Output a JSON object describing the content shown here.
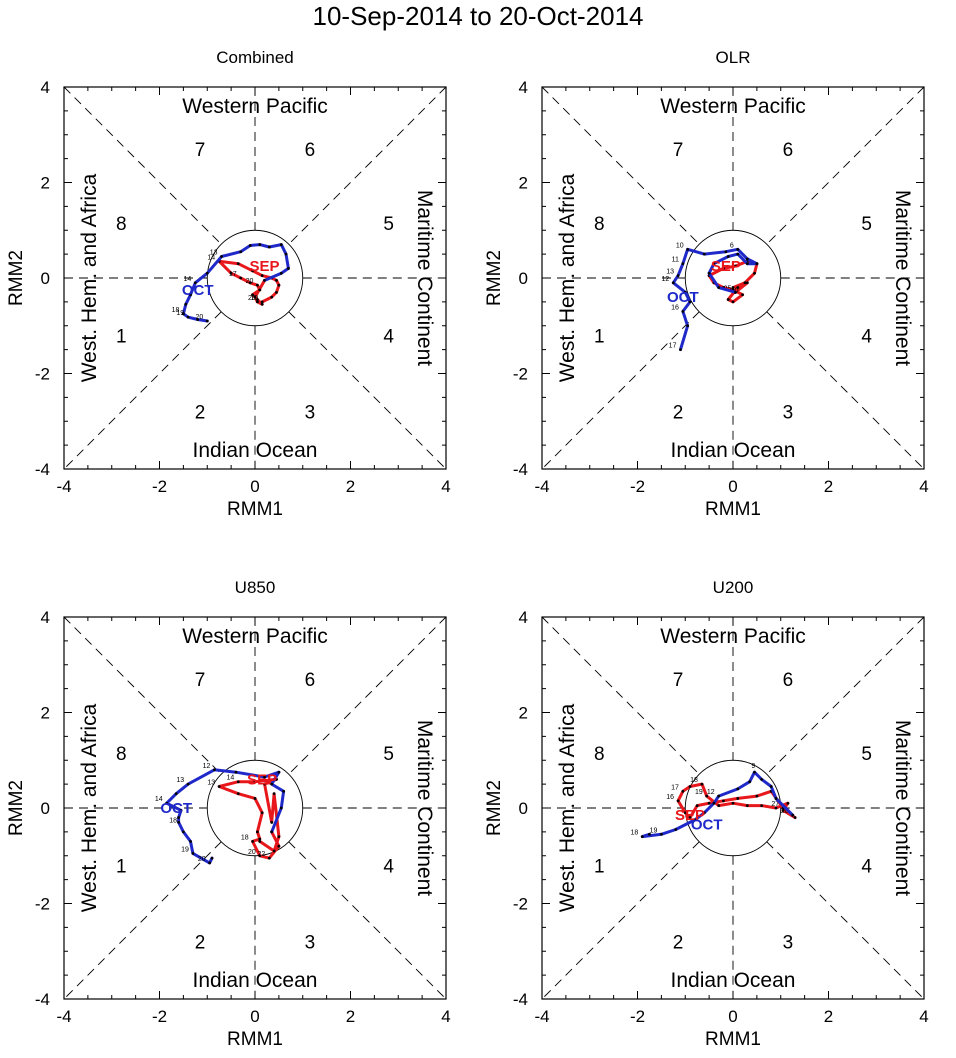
{
  "title": "10-Sep-2014 to 20-Oct-2014",
  "colors": {
    "sep": "#e8171b",
    "oct": "#1f28c9",
    "axis": "#000000"
  },
  "chart_data": [
    {
      "type": "line",
      "title": "Combined",
      "xlabel": "RMM1",
      "ylabel": "RMM2",
      "xlim": [
        -4,
        4
      ],
      "ylim": [
        -4,
        4
      ],
      "xticks": [
        "-4",
        "-2",
        "0",
        "2",
        "4"
      ],
      "yticks": [
        "-4",
        "-2",
        "0",
        "2",
        "4"
      ],
      "regions": {
        "top": "Western Pacific",
        "bottom": "Indian Ocean",
        "left": "West. Hem. and Africa",
        "right": "Maritime Continent"
      },
      "phases": [
        "1",
        "2",
        "3",
        "4",
        "5",
        "6",
        "7",
        "8"
      ],
      "series": [
        {
          "name": "SEP",
          "points": [
            [
              0.15,
              -0.5
            ],
            [
              0.35,
              -0.4
            ],
            [
              0.45,
              -0.3
            ],
            [
              0.5,
              -0.15
            ],
            [
              0.45,
              -0.05
            ],
            [
              0.35,
              0.0
            ],
            [
              0.15,
              0.05
            ],
            [
              -0.05,
              0.15
            ],
            [
              -0.35,
              0.3
            ],
            [
              -0.75,
              0.35
            ],
            [
              -0.5,
              0.1
            ],
            [
              -0.3,
              0.0
            ],
            [
              -0.1,
              -0.1
            ],
            [
              0.05,
              -0.15
            ],
            [
              0.1,
              -0.25
            ],
            [
              -0.05,
              -0.35
            ],
            [
              0.05,
              -0.45
            ],
            [
              0.15,
              -0.55
            ],
            [
              0.05,
              -0.5
            ],
            [
              0.0,
              -0.4
            ],
            [
              0.2,
              -0.05
            ]
          ],
          "labels": [
            [
              "10",
              0.15,
              -0.5
            ],
            [
              "14",
              -0.75,
              0.35
            ],
            [
              "17",
              -0.3,
              0.0
            ],
            [
              "20",
              0.05,
              -0.15
            ],
            [
              "25",
              0.1,
              -0.5
            ]
          ]
        },
        {
          "name": "OCT",
          "points": [
            [
              0.2,
              -0.05
            ],
            [
              0.55,
              0.1
            ],
            [
              0.7,
              0.2
            ],
            [
              0.65,
              0.5
            ],
            [
              0.55,
              0.7
            ],
            [
              0.3,
              0.65
            ],
            [
              0.1,
              0.7
            ],
            [
              -0.1,
              0.68
            ],
            [
              -0.3,
              0.55
            ],
            [
              -0.7,
              0.45
            ],
            [
              -1.0,
              0.1
            ],
            [
              -1.25,
              -0.1
            ],
            [
              -1.35,
              -0.35
            ],
            [
              -1.45,
              -0.55
            ],
            [
              -1.5,
              -0.75
            ],
            [
              -1.4,
              -0.82
            ],
            [
              -1.2,
              -0.87
            ],
            [
              -1.0,
              -0.9
            ]
          ],
          "labels": [
            [
              "13",
              -0.7,
              0.45
            ],
            [
              "14",
              -1.25,
              -0.1
            ],
            [
              "18",
              -1.5,
              -0.75
            ],
            [
              "19",
              -1.4,
              -0.82
            ],
            [
              "20",
              -1.0,
              -0.9
            ]
          ]
        }
      ],
      "month_labels": [
        [
          "SEP",
          0.2,
          0.25,
          "sep"
        ],
        [
          "OCT",
          -1.2,
          -0.25,
          "oct"
        ]
      ]
    },
    {
      "type": "line",
      "title": "OLR",
      "xlabel": "RMM1",
      "ylabel": "RMM2",
      "xlim": [
        -4,
        4
      ],
      "ylim": [
        -4,
        4
      ],
      "xticks": [
        "-4",
        "-2",
        "0",
        "2",
        "4"
      ],
      "yticks": [
        "-4",
        "-2",
        "0",
        "2",
        "4"
      ],
      "regions": {
        "top": "Western Pacific",
        "bottom": "Indian Ocean",
        "left": "West. Hem. and Africa",
        "right": "Maritime Continent"
      },
      "phases": [
        "1",
        "2",
        "3",
        "4",
        "5",
        "6",
        "7",
        "8"
      ],
      "series": [
        {
          "name": "SEP",
          "points": [
            [
              0.0,
              -0.2
            ],
            [
              0.25,
              -0.1
            ],
            [
              0.45,
              0.1
            ],
            [
              0.5,
              0.3
            ],
            [
              0.3,
              0.35
            ],
            [
              0.05,
              0.25
            ],
            [
              -0.2,
              0.2
            ],
            [
              -0.5,
              0.05
            ],
            [
              -0.4,
              -0.1
            ],
            [
              -0.2,
              -0.2
            ],
            [
              0.0,
              -0.25
            ],
            [
              0.2,
              -0.35
            ],
            [
              0.0,
              -0.5
            ],
            [
              -0.1,
              -0.45
            ],
            [
              0.1,
              -0.2
            ],
            [
              0.3,
              -0.1
            ],
            [
              0.05,
              -0.3
            ]
          ],
          "labels": [
            [
              "25",
              0.05,
              -0.3
            ],
            [
              "30",
              0.2,
              -0.35
            ]
          ]
        },
        {
          "name": "OCT",
          "points": [
            [
              0.05,
              -0.3
            ],
            [
              -0.3,
              -0.2
            ],
            [
              -0.5,
              0.1
            ],
            [
              -0.4,
              0.3
            ],
            [
              -0.1,
              0.45
            ],
            [
              0.1,
              0.5
            ],
            [
              0.3,
              0.3
            ],
            [
              0.5,
              0.3
            ],
            [
              0.3,
              0.4
            ],
            [
              0.1,
              0.6
            ],
            [
              -0.15,
              0.55
            ],
            [
              -0.6,
              0.5
            ],
            [
              -0.95,
              0.6
            ],
            [
              -1.05,
              0.3
            ],
            [
              -1.15,
              0.05
            ],
            [
              -1.25,
              -0.1
            ],
            [
              -1.0,
              -0.3
            ],
            [
              -0.9,
              -0.5
            ],
            [
              -1.05,
              -0.7
            ],
            [
              -0.95,
              -1.0
            ],
            [
              -1.1,
              -1.5
            ]
          ],
          "labels": [
            [
              "6",
              0.1,
              0.6
            ],
            [
              "10",
              -0.95,
              0.6
            ],
            [
              "11",
              -1.05,
              0.3
            ],
            [
              "12",
              -1.25,
              -0.1
            ],
            [
              "13",
              -1.15,
              0.05
            ],
            [
              "16",
              -1.05,
              -0.7
            ],
            [
              "17",
              -1.1,
              -1.5
            ]
          ]
        }
      ],
      "month_labels": [
        [
          "SEP",
          -0.15,
          0.25,
          "sep"
        ],
        [
          "OCT",
          -1.05,
          -0.4,
          "oct"
        ]
      ]
    },
    {
      "type": "line",
      "title": "U850",
      "xlabel": "RMM1",
      "ylabel": "RMM2",
      "xlim": [
        -4,
        4
      ],
      "ylim": [
        -4,
        4
      ],
      "xticks": [
        "-4",
        "-2",
        "0",
        "2",
        "4"
      ],
      "yticks": [
        "-4",
        "-2",
        "0",
        "2",
        "4"
      ],
      "regions": {
        "top": "Western Pacific",
        "bottom": "Indian Ocean",
        "left": "West. Hem. and Africa",
        "right": "Maritime Continent"
      },
      "phases": [
        "1",
        "2",
        "3",
        "4",
        "5",
        "6",
        "7",
        "8"
      ],
      "series": [
        {
          "name": "SEP",
          "points": [
            [
              0.1,
              -0.7
            ],
            [
              0.4,
              -0.9
            ],
            [
              0.5,
              -0.6
            ],
            [
              0.4,
              0.3
            ],
            [
              0.35,
              -0.3
            ],
            [
              0.2,
              0.5
            ],
            [
              0.45,
              0.6
            ],
            [
              0.0,
              0.55
            ],
            [
              -0.35,
              0.55
            ],
            [
              -0.75,
              0.45
            ],
            [
              -0.35,
              0.3
            ],
            [
              0.0,
              0.2
            ],
            [
              0.15,
              -0.1
            ],
            [
              0.05,
              -0.5
            ],
            [
              0.1,
              -0.65
            ],
            [
              -0.05,
              -0.7
            ],
            [
              0.1,
              -1.0
            ],
            [
              0.3,
              -1.05
            ],
            [
              0.5,
              -0.8
            ],
            [
              0.35,
              -0.5
            ]
          ],
          "labels": [
            [
              "14",
              -0.35,
              0.55
            ],
            [
              "13",
              -0.75,
              0.45
            ],
            [
              "18",
              -0.05,
              -0.7
            ],
            [
              "20",
              0.1,
              -1.0
            ],
            [
              "22",
              0.3,
              -1.05
            ]
          ]
        },
        {
          "name": "OCT",
          "points": [
            [
              0.35,
              -0.5
            ],
            [
              0.55,
              0.0
            ],
            [
              0.6,
              0.35
            ],
            [
              0.35,
              0.5
            ],
            [
              0.5,
              0.75
            ],
            [
              0.2,
              0.65
            ],
            [
              -0.4,
              0.75
            ],
            [
              -0.85,
              0.8
            ],
            [
              -1.4,
              0.5
            ],
            [
              -1.65,
              0.3
            ],
            [
              -1.85,
              0.1
            ],
            [
              -1.55,
              -0.05
            ],
            [
              -1.6,
              -0.2
            ],
            [
              -1.6,
              -0.3
            ],
            [
              -1.5,
              -0.5
            ],
            [
              -1.35,
              -0.7
            ],
            [
              -1.3,
              -0.95
            ],
            [
              -0.95,
              -1.15
            ],
            [
              -0.9,
              -1.05
            ]
          ],
          "labels": [
            [
              "12",
              -0.85,
              0.8
            ],
            [
              "13",
              -1.4,
              0.5
            ],
            [
              "14",
              -1.85,
              0.1
            ],
            [
              "18",
              -1.55,
              -0.35
            ],
            [
              "19",
              -1.3,
              -0.95
            ],
            [
              "20",
              -0.95,
              -1.15
            ]
          ]
        }
      ],
      "month_labels": [
        [
          "SEP",
          0.15,
          0.6,
          "sep"
        ],
        [
          "OCT",
          -1.65,
          0.0,
          "oct"
        ]
      ]
    },
    {
      "type": "line",
      "title": "U200",
      "xlabel": "RMM1",
      "ylabel": "RMM2",
      "xlim": [
        -4,
        4
      ],
      "ylim": [
        -4,
        4
      ],
      "xticks": [
        "-4",
        "-2",
        "0",
        "2",
        "4"
      ],
      "yticks": [
        "-4",
        "-2",
        "0",
        "2",
        "4"
      ],
      "regions": {
        "top": "Western Pacific",
        "bottom": "Indian Ocean",
        "left": "West. Hem. and Africa",
        "right": "Maritime Continent"
      },
      "phases": [
        "1",
        "2",
        "3",
        "4",
        "5",
        "6",
        "7",
        "8"
      ],
      "series": [
        {
          "name": "SEP",
          "points": [
            [
              1.3,
              -0.2
            ],
            [
              1.05,
              -0.05
            ],
            [
              1.15,
              0.1
            ],
            [
              0.9,
              0.0
            ],
            [
              0.6,
              0.05
            ],
            [
              0.3,
              0.05
            ],
            [
              0.0,
              0.1
            ],
            [
              -0.3,
              0.05
            ],
            [
              -0.55,
              0.25
            ],
            [
              -0.65,
              0.5
            ],
            [
              -0.9,
              0.45
            ],
            [
              -1.05,
              0.35
            ],
            [
              -1.15,
              0.15
            ],
            [
              -1.0,
              -0.1
            ],
            [
              -0.9,
              -0.2
            ],
            [
              -0.75,
              0.05
            ],
            [
              -0.5,
              0.1
            ],
            [
              -0.2,
              0.15
            ],
            [
              0.1,
              0.2
            ],
            [
              0.5,
              0.25
            ],
            [
              0.8,
              0.35
            ],
            [
              1.05,
              0.0
            ],
            [
              1.25,
              -0.15
            ]
          ],
          "labels": [
            [
              "16",
              -1.15,
              0.15
            ],
            [
              "17",
              -1.05,
              0.35
            ],
            [
              "18",
              -0.65,
              0.5
            ],
            [
              "19",
              -0.55,
              0.25
            ],
            [
              "27",
              1.05,
              0.0
            ],
            [
              "28",
              1.25,
              -0.15
            ]
          ]
        },
        {
          "name": "OCT",
          "points": [
            [
              1.25,
              -0.15
            ],
            [
              0.9,
              0.2
            ],
            [
              0.8,
              0.45
            ],
            [
              0.6,
              0.6
            ],
            [
              0.45,
              0.75
            ],
            [
              0.35,
              0.55
            ],
            [
              0.1,
              0.4
            ],
            [
              -0.3,
              0.25
            ],
            [
              -0.4,
              0.1
            ],
            [
              -0.6,
              -0.1
            ],
            [
              -0.8,
              -0.25
            ],
            [
              -1.2,
              -0.45
            ],
            [
              -1.5,
              -0.55
            ],
            [
              -1.9,
              -0.6
            ],
            [
              -1.75,
              -0.55
            ]
          ],
          "labels": [
            [
              "9",
              0.55,
              0.8
            ],
            [
              "12",
              -0.3,
              0.25
            ],
            [
              "18",
              -1.9,
              -0.6
            ],
            [
              "19",
              -1.5,
              -0.55
            ]
          ]
        }
      ],
      "month_labels": [
        [
          "SEP",
          -0.9,
          -0.15,
          "sep"
        ],
        [
          "OCT",
          -0.55,
          -0.35,
          "oct"
        ]
      ]
    }
  ]
}
